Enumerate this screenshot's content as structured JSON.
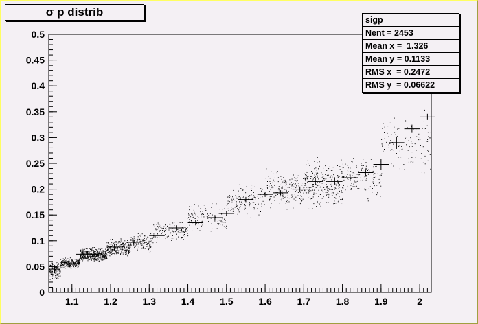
{
  "title": "σ p distrib",
  "stats": {
    "name": "sigp",
    "rows": [
      "Nent = 2453",
      "Mean x =  1.326",
      "Mean y = 0.1133",
      "RMS x  = 0.2472",
      "RMS y  = 0.06622"
    ]
  },
  "chart_data": {
    "type": "scatter",
    "title": "σ p distrib",
    "xlabel": "",
    "ylabel": "",
    "xlim": [
      1.04,
      2.03
    ],
    "ylim": [
      0,
      0.5
    ],
    "x_ticks": [
      "1.1",
      "1.2",
      "1.3",
      "1.4",
      "1.5",
      "1.6",
      "1.7",
      "1.8",
      "1.9",
      "2"
    ],
    "y_ticks": [
      "0",
      "0.05",
      "0.1",
      "0.15",
      "0.2",
      "0.25",
      "0.3",
      "0.35",
      "0.4",
      "0.45",
      "0.5"
    ],
    "profile": [
      {
        "x": 1.055,
        "y": 0.045,
        "xerr": 0.015,
        "yerr": 0.008
      },
      {
        "x": 1.09,
        "y": 0.055,
        "xerr": 0.02,
        "yerr": 0.006
      },
      {
        "x": 1.14,
        "y": 0.074,
        "xerr": 0.03,
        "yerr": 0.005
      },
      {
        "x": 1.21,
        "y": 0.088,
        "xerr": 0.02,
        "yerr": 0.006
      },
      {
        "x": 1.26,
        "y": 0.097,
        "xerr": 0.02,
        "yerr": 0.006
      },
      {
        "x": 1.32,
        "y": 0.11,
        "xerr": 0.02,
        "yerr": 0.005
      },
      {
        "x": 1.37,
        "y": 0.125,
        "xerr": 0.02,
        "yerr": 0.005
      },
      {
        "x": 1.42,
        "y": 0.135,
        "xerr": 0.02,
        "yerr": 0.005
      },
      {
        "x": 1.47,
        "y": 0.145,
        "xerr": 0.02,
        "yerr": 0.005
      },
      {
        "x": 1.5,
        "y": 0.153,
        "xerr": 0.02,
        "yerr": 0.005
      },
      {
        "x": 1.55,
        "y": 0.18,
        "xerr": 0.02,
        "yerr": 0.005
      },
      {
        "x": 1.6,
        "y": 0.19,
        "xerr": 0.02,
        "yerr": 0.005
      },
      {
        "x": 1.64,
        "y": 0.193,
        "xerr": 0.02,
        "yerr": 0.005
      },
      {
        "x": 1.69,
        "y": 0.2,
        "xerr": 0.02,
        "yerr": 0.005
      },
      {
        "x": 1.73,
        "y": 0.215,
        "xerr": 0.02,
        "yerr": 0.006
      },
      {
        "x": 1.78,
        "y": 0.215,
        "xerr": 0.02,
        "yerr": 0.006
      },
      {
        "x": 1.82,
        "y": 0.222,
        "xerr": 0.02,
        "yerr": 0.006
      },
      {
        "x": 1.86,
        "y": 0.232,
        "xerr": 0.02,
        "yerr": 0.007
      },
      {
        "x": 1.9,
        "y": 0.248,
        "xerr": 0.02,
        "yerr": 0.01
      },
      {
        "x": 1.94,
        "y": 0.29,
        "xerr": 0.02,
        "yerr": 0.012
      },
      {
        "x": 1.98,
        "y": 0.317,
        "xerr": 0.02,
        "yerr": 0.008
      },
      {
        "x": 2.02,
        "y": 0.34,
        "xerr": 0.02,
        "yerr": 0.006
      }
    ],
    "scatter_bands": [
      {
        "x0": 1.04,
        "x1": 1.07,
        "y0": 0.02,
        "y1": 0.065,
        "count": 140
      },
      {
        "x0": 1.07,
        "x1": 1.12,
        "y0": 0.045,
        "y1": 0.07,
        "count": 260
      },
      {
        "x0": 1.12,
        "x1": 1.19,
        "y0": 0.055,
        "y1": 0.09,
        "count": 520
      },
      {
        "x0": 1.19,
        "x1": 1.25,
        "y0": 0.065,
        "y1": 0.11,
        "count": 260
      },
      {
        "x0": 1.25,
        "x1": 1.31,
        "y0": 0.075,
        "y1": 0.12,
        "count": 160
      },
      {
        "x0": 1.31,
        "x1": 1.4,
        "y0": 0.09,
        "y1": 0.15,
        "count": 130
      },
      {
        "x0": 1.4,
        "x1": 1.5,
        "y0": 0.11,
        "y1": 0.18,
        "count": 120
      },
      {
        "x0": 1.5,
        "x1": 1.6,
        "y0": 0.14,
        "y1": 0.22,
        "count": 130
      },
      {
        "x0": 1.6,
        "x1": 1.7,
        "y0": 0.15,
        "y1": 0.25,
        "count": 180
      },
      {
        "x0": 1.7,
        "x1": 1.8,
        "y0": 0.15,
        "y1": 0.27,
        "count": 260
      },
      {
        "x0": 1.8,
        "x1": 1.9,
        "y0": 0.17,
        "y1": 0.28,
        "count": 150
      },
      {
        "x0": 1.9,
        "x1": 2.03,
        "y0": 0.2,
        "y1": 0.37,
        "count": 120
      }
    ]
  }
}
